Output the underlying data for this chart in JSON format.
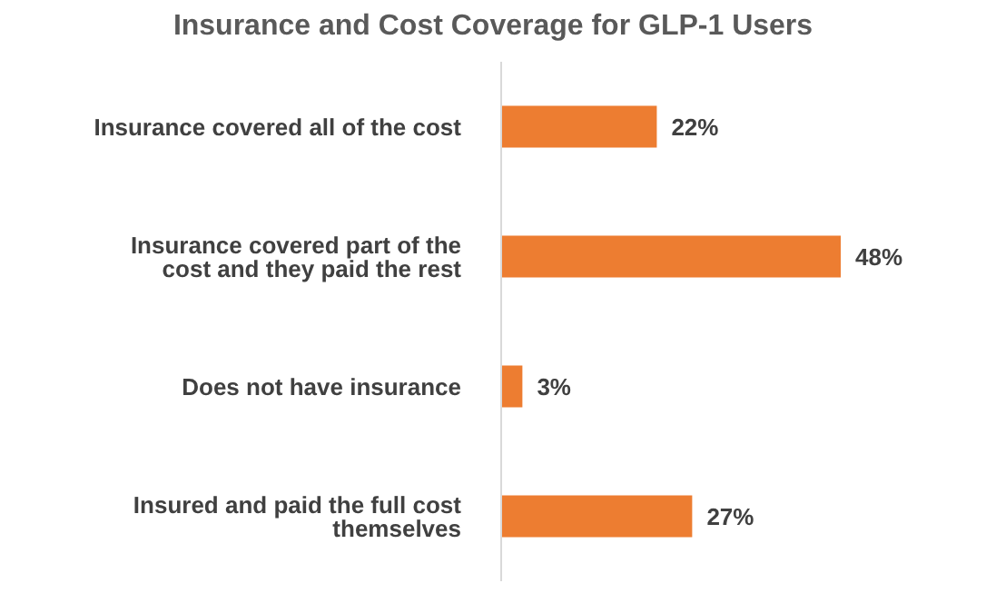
{
  "chart_data": {
    "type": "bar",
    "orientation": "horizontal",
    "title": "Insurance and Cost Coverage for GLP-1 Users",
    "categories": [
      "Insurance covered all of the cost",
      "Insurance covered part of the cost and they paid the rest",
      "Does not have insurance",
      "Insured and paid the full cost themselves"
    ],
    "values": [
      22,
      48,
      3,
      27
    ],
    "color": "#ed7d31",
    "data_labels": true,
    "value_labels": [
      "22%",
      "48%",
      "3%",
      "27%"
    ],
    "grid": false,
    "legend": false
  }
}
